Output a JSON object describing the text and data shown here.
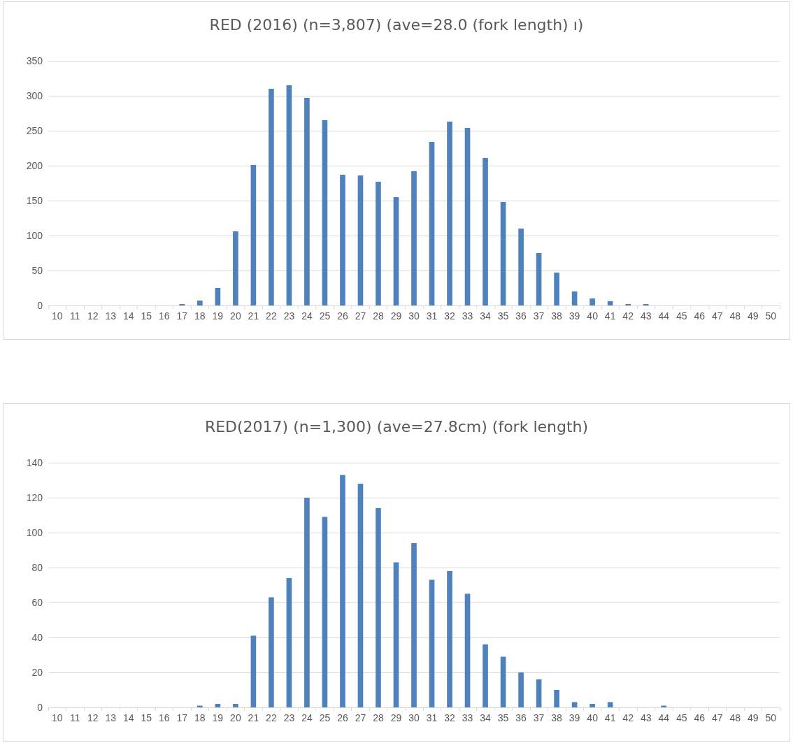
{
  "chart_data": [
    {
      "type": "bar",
      "title": "RED (2016) (n=3,807) (ave=28.0 (fork length) ı)",
      "categories": [
        "10",
        "11",
        "12",
        "13",
        "14",
        "15",
        "16",
        "17",
        "18",
        "19",
        "20",
        "21",
        "22",
        "23",
        "24",
        "25",
        "26",
        "27",
        "28",
        "29",
        "30",
        "31",
        "32",
        "33",
        "34",
        "35",
        "36",
        "37",
        "38",
        "39",
        "40",
        "41",
        "42",
        "43",
        "44",
        "45",
        "46",
        "47",
        "48",
        "49",
        "50"
      ],
      "values": [
        0,
        0,
        0,
        0,
        0,
        0,
        0,
        2,
        7,
        25,
        106,
        201,
        310,
        315,
        297,
        265,
        187,
        186,
        177,
        155,
        192,
        234,
        263,
        254,
        211,
        148,
        110,
        75,
        47,
        20,
        10,
        6,
        2,
        2,
        0,
        0,
        0,
        0,
        0,
        0,
        0
      ],
      "color": "#4f81bd",
      "ylim": [
        0,
        350
      ],
      "yticks": [
        0,
        50,
        100,
        150,
        200,
        250,
        300,
        350
      ],
      "grid": "y"
    },
    {
      "type": "bar",
      "title": "RED(2017) (n=1,300) (ave=27.8cm) (fork length)",
      "categories": [
        "10",
        "11",
        "12",
        "13",
        "14",
        "15",
        "16",
        "17",
        "18",
        "19",
        "20",
        "21",
        "22",
        "23",
        "24",
        "25",
        "26",
        "27",
        "28",
        "29",
        "30",
        "31",
        "32",
        "33",
        "34",
        "35",
        "36",
        "37",
        "38",
        "39",
        "40",
        "41",
        "42",
        "43",
        "44",
        "45",
        "46",
        "47",
        "48",
        "49",
        "50"
      ],
      "values": [
        0,
        0,
        0,
        0,
        0,
        0,
        0,
        0,
        1,
        2,
        2,
        41,
        63,
        74,
        120,
        109,
        133,
        128,
        114,
        83,
        94,
        73,
        78,
        65,
        36,
        29,
        20,
        16,
        10,
        3,
        2,
        3,
        0,
        0,
        1,
        0,
        0,
        0,
        0,
        0,
        0
      ],
      "color": "#4f81bd",
      "ylim": [
        0,
        140
      ],
      "yticks": [
        0,
        20,
        40,
        60,
        80,
        100,
        120,
        140
      ],
      "grid": "y"
    }
  ]
}
